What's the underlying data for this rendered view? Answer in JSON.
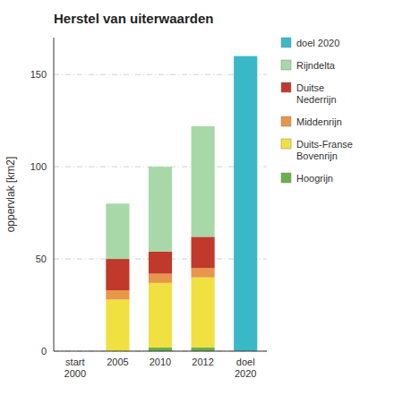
{
  "chart_data": {
    "type": "bar",
    "stacked": true,
    "title": "Herstel van uiterwaarden",
    "y_label": "oppervlak [km2]",
    "categories": [
      "start\n2000",
      "2005",
      "2010",
      "2012",
      "doel\n2020"
    ],
    "series": [
      {
        "name": "Hoogrijn",
        "color": "#6ab04c",
        "values": [
          0,
          0,
          2,
          2,
          0
        ]
      },
      {
        "name": "Duits-Franse\nBovenrijn",
        "color": "#f0e040",
        "values": [
          0,
          28,
          35,
          38,
          0
        ]
      },
      {
        "name": "Middenrijn",
        "color": "#e8964a",
        "values": [
          0,
          5,
          5,
          5,
          0
        ]
      },
      {
        "name": "Duitse\nNederrijn",
        "color": "#c0392b",
        "values": [
          0,
          17,
          12,
          17,
          0
        ]
      },
      {
        "name": "Rijndelta",
        "color": "#a8d8a8",
        "values": [
          0,
          30,
          46,
          60,
          0
        ]
      },
      {
        "name": "doel 2020",
        "color": "#3ab8c8",
        "values": [
          0,
          0,
          0,
          0,
          160
        ]
      }
    ],
    "ylim": [
      0,
      170
    ],
    "yticks": [
      0,
      50,
      100,
      150
    ],
    "grid": true,
    "legend": "right"
  }
}
